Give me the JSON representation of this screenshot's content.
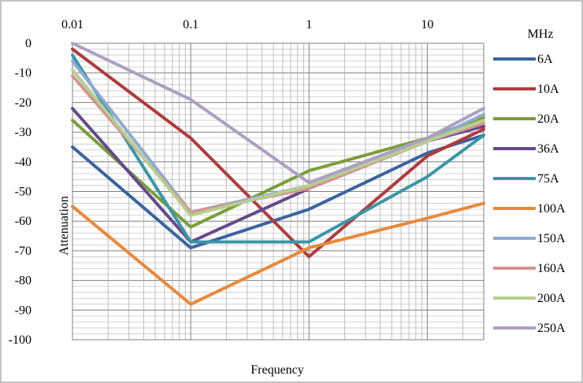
{
  "chart_data": {
    "type": "line",
    "title": "",
    "xlabel": "Frequency",
    "ylabel": "Attenuation",
    "x_unit": "MHz",
    "x_scale": "log",
    "xlim": [
      0.01,
      30
    ],
    "ylim": [
      -100,
      0
    ],
    "x_ticks": [
      {
        "value": 0.01,
        "label": "0.01"
      },
      {
        "value": 0.1,
        "label": "0.1"
      },
      {
        "value": 1,
        "label": "1"
      },
      {
        "value": 10,
        "label": "10"
      }
    ],
    "y_ticks": [
      {
        "value": 0,
        "label": "0"
      },
      {
        "value": -10,
        "label": "-10"
      },
      {
        "value": -20,
        "label": "-20"
      },
      {
        "value": -30,
        "label": "-30"
      },
      {
        "value": -40,
        "label": "-40"
      },
      {
        "value": -50,
        "label": "-50"
      },
      {
        "value": -60,
        "label": "-60"
      },
      {
        "value": -70,
        "label": "-70"
      },
      {
        "value": -80,
        "label": "-80"
      },
      {
        "value": -90,
        "label": "-90"
      },
      {
        "value": -100,
        "label": "-100"
      }
    ],
    "grid": true,
    "legend_position": "right",
    "x": [
      0.01,
      0.1,
      1,
      10,
      30
    ],
    "series": [
      {
        "name": "6A",
        "color": "#3a64a0",
        "values": [
          -35,
          -69,
          -56,
          -37,
          -31
        ]
      },
      {
        "name": "10A",
        "color": "#b03b3b",
        "values": [
          -2,
          -32,
          -72,
          -38,
          -29
        ]
      },
      {
        "name": "20A",
        "color": "#7a9e3a",
        "values": [
          -26,
          -62,
          -43,
          -32,
          -25
        ]
      },
      {
        "name": "36A",
        "color": "#654a8a",
        "values": [
          -22,
          -67,
          -49,
          -33,
          -28
        ]
      },
      {
        "name": "75A",
        "color": "#3997a8",
        "values": [
          -4,
          -67,
          -67,
          -45,
          -31
        ]
      },
      {
        "name": "100A",
        "color": "#e8893a",
        "values": [
          -55,
          -88,
          -69,
          -59,
          -54
        ]
      },
      {
        "name": "150A",
        "color": "#8eaad3",
        "values": [
          -6,
          -57,
          -48,
          -33,
          -24
        ]
      },
      {
        "name": "160A",
        "color": "#d6928f",
        "values": [
          -11,
          -57,
          -49,
          -33,
          -27
        ]
      },
      {
        "name": "200A",
        "color": "#b5cf8f",
        "values": [
          -9,
          -58,
          -48,
          -33,
          -26
        ]
      },
      {
        "name": "250A",
        "color": "#ad9fc3",
        "values": [
          0,
          -19,
          -47,
          -32,
          -22
        ]
      }
    ]
  }
}
